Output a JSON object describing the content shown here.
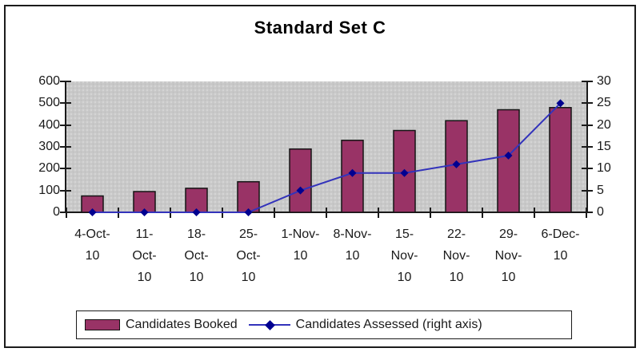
{
  "chart_data": {
    "type": "combo",
    "title": "Standard Set C",
    "categories": [
      "4-Oct-10",
      "11-Oct-10",
      "18-Oct-10",
      "25-Oct-10",
      "1-Nov-10",
      "8-Nov-10",
      "15-Nov-10",
      "22-Nov-10",
      "29-Nov-10",
      "6-Dec-10"
    ],
    "category_label_lines": [
      [
        "4-Oct-",
        "10"
      ],
      [
        "11-",
        "Oct-",
        "10"
      ],
      [
        "18-",
        "Oct-",
        "10"
      ],
      [
        "25-",
        "Oct-",
        "10"
      ],
      [
        "1-Nov-",
        "10"
      ],
      [
        "8-Nov-",
        "10"
      ],
      [
        "15-",
        "Nov-",
        "10"
      ],
      [
        "22-",
        "Nov-",
        "10"
      ],
      [
        "29-",
        "Nov-",
        "10"
      ],
      [
        "6-Dec-",
        "10"
      ]
    ],
    "series": [
      {
        "name": "Candidates Booked",
        "type": "bar",
        "axis": "left",
        "color": "#993366",
        "border_color": "#141414",
        "values": [
          75,
          95,
          110,
          140,
          290,
          330,
          375,
          420,
          470,
          480
        ]
      },
      {
        "name": "Candidates Assessed (right axis)",
        "type": "line",
        "axis": "right",
        "color": "#3333bb",
        "marker": "diamond",
        "marker_color": "#000090",
        "values": [
          0,
          0,
          0,
          0,
          5,
          9,
          9,
          11,
          13,
          25
        ]
      }
    ],
    "left_axis": {
      "min": 0,
      "max": 600,
      "step": 100,
      "tick_labels": [
        "600",
        "500",
        "400",
        "300",
        "200",
        "100",
        "0"
      ]
    },
    "right_axis": {
      "min": 0,
      "max": 30,
      "step": 5,
      "tick_labels": [
        "30",
        "25",
        "20",
        "15",
        "10",
        "5",
        "0"
      ]
    },
    "grid": false,
    "legend_position": "bottom",
    "plot_bg": "#c9c9c9"
  },
  "legend": {
    "items": [
      {
        "label": "Candidates Booked",
        "swatch": "bar"
      },
      {
        "label": "Candidates Assessed (right axis)",
        "swatch": "line-diamond"
      }
    ]
  }
}
